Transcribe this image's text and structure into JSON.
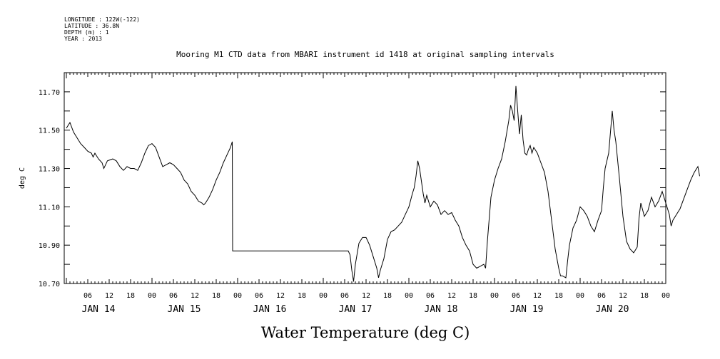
{
  "header": {
    "longitude": "LONGITUDE : 122W(-122)",
    "latitude": "LATITUDE : 36.8N",
    "depth": "DEPTH (m) : 1",
    "year": "YEAR : 2013"
  },
  "chart_data": {
    "type": "line",
    "title": "Mooring M1 CTD data from MBARI instrument id 1418 at original sampling intervals",
    "xlabel": "Water Temperature (deg C)",
    "ylabel": "deg C",
    "xlim_hours": [
      0,
      171
    ],
    "ylim": [
      10.7,
      11.8
    ],
    "y_ticks": [
      "10.70",
      "10.90",
      "11.10",
      "11.30",
      "11.50",
      "11.70"
    ],
    "hour_tick_labels": [
      "06",
      "12",
      "18",
      "00"
    ],
    "day_labels": [
      "JAN 14",
      "JAN 15",
      "JAN 16",
      "JAN 17",
      "JAN 18",
      "JAN 19",
      "JAN 20"
    ],
    "grid": false,
    "series": [
      {
        "points": [
          [
            0.0,
            11.51
          ],
          [
            1.0,
            11.54
          ],
          [
            2.0,
            11.49
          ],
          [
            3.0,
            11.46
          ],
          [
            4.0,
            11.43
          ],
          [
            5.0,
            11.41
          ],
          [
            6.0,
            11.39
          ],
          [
            7.0,
            11.38
          ],
          [
            7.5,
            11.36
          ],
          [
            8.0,
            11.38
          ],
          [
            9.0,
            11.35
          ],
          [
            10.0,
            11.33
          ],
          [
            10.5,
            11.3
          ],
          [
            11.0,
            11.32
          ],
          [
            11.5,
            11.34
          ],
          [
            13.0,
            11.35
          ],
          [
            14.0,
            11.34
          ],
          [
            15.0,
            11.31
          ],
          [
            16.0,
            11.29
          ],
          [
            17.0,
            11.31
          ],
          [
            18.0,
            11.3
          ],
          [
            19.0,
            11.3
          ],
          [
            20.0,
            11.29
          ],
          [
            21.0,
            11.33
          ],
          [
            22.0,
            11.38
          ],
          [
            23.0,
            11.42
          ],
          [
            24.0,
            11.43
          ],
          [
            25.0,
            11.41
          ],
          [
            26.0,
            11.36
          ],
          [
            27.0,
            11.31
          ],
          [
            28.0,
            11.32
          ],
          [
            29.0,
            11.33
          ],
          [
            30.0,
            11.32
          ],
          [
            31.0,
            11.3
          ],
          [
            32.0,
            11.28
          ],
          [
            33.0,
            11.24
          ],
          [
            34.0,
            11.22
          ],
          [
            35.0,
            11.18
          ],
          [
            36.0,
            11.16
          ],
          [
            37.0,
            11.13
          ],
          [
            38.0,
            11.12
          ],
          [
            38.5,
            11.11
          ],
          [
            39.0,
            11.12
          ],
          [
            40.0,
            11.15
          ],
          [
            41.0,
            11.19
          ],
          [
            42.0,
            11.24
          ],
          [
            43.0,
            11.28
          ],
          [
            44.0,
            11.33
          ],
          [
            45.0,
            11.37
          ],
          [
            46.0,
            11.41
          ],
          [
            46.5,
            11.44
          ],
          [
            46.6,
            10.87
          ],
          [
            58.0,
            10.87
          ],
          [
            70.0,
            10.87
          ],
          [
            79.0,
            10.87
          ],
          [
            79.5,
            10.85
          ],
          [
            80.0,
            10.77
          ],
          [
            80.5,
            10.71
          ],
          [
            81.0,
            10.8
          ],
          [
            82.0,
            10.91
          ],
          [
            83.0,
            10.94
          ],
          [
            84.0,
            10.94
          ],
          [
            85.0,
            10.9
          ],
          [
            86.0,
            10.84
          ],
          [
            87.0,
            10.78
          ],
          [
            87.5,
            10.73
          ],
          [
            88.0,
            10.77
          ],
          [
            89.0,
            10.83
          ],
          [
            90.0,
            10.93
          ],
          [
            91.0,
            10.97
          ],
          [
            92.0,
            10.98
          ],
          [
            93.0,
            11.0
          ],
          [
            94.0,
            11.02
          ],
          [
            95.0,
            11.06
          ],
          [
            96.0,
            11.1
          ],
          [
            97.0,
            11.17
          ],
          [
            97.5,
            11.2
          ],
          [
            98.0,
            11.26
          ],
          [
            98.5,
            11.34
          ],
          [
            99.0,
            11.3
          ],
          [
            100.0,
            11.17
          ],
          [
            100.5,
            11.12
          ],
          [
            101.0,
            11.16
          ],
          [
            102.0,
            11.1
          ],
          [
            103.0,
            11.13
          ],
          [
            104.0,
            11.11
          ],
          [
            105.0,
            11.06
          ],
          [
            106.0,
            11.08
          ],
          [
            107.0,
            11.06
          ],
          [
            108.0,
            11.07
          ],
          [
            109.0,
            11.03
          ],
          [
            110.0,
            11.0
          ],
          [
            111.0,
            10.94
          ],
          [
            112.0,
            10.9
          ],
          [
            113.0,
            10.87
          ],
          [
            114.0,
            10.8
          ],
          [
            115.0,
            10.78
          ],
          [
            116.0,
            10.79
          ],
          [
            117.0,
            10.8
          ],
          [
            117.5,
            10.78
          ],
          [
            118.0,
            10.92
          ],
          [
            119.0,
            11.15
          ],
          [
            120.0,
            11.24
          ],
          [
            121.0,
            11.3
          ],
          [
            122.0,
            11.35
          ],
          [
            123.0,
            11.44
          ],
          [
            124.0,
            11.55
          ],
          [
            124.5,
            11.63
          ],
          [
            125.0,
            11.6
          ],
          [
            125.5,
            11.55
          ],
          [
            126.0,
            11.73
          ],
          [
            126.5,
            11.6
          ],
          [
            127.0,
            11.48
          ],
          [
            127.5,
            11.58
          ],
          [
            128.0,
            11.45
          ],
          [
            128.5,
            11.38
          ],
          [
            129.0,
            11.37
          ],
          [
            129.5,
            11.4
          ],
          [
            130.0,
            11.42
          ],
          [
            130.5,
            11.38
          ],
          [
            131.0,
            11.41
          ],
          [
            132.0,
            11.38
          ],
          [
            133.0,
            11.33
          ],
          [
            134.0,
            11.28
          ],
          [
            135.0,
            11.18
          ],
          [
            136.0,
            11.03
          ],
          [
            137.0,
            10.88
          ],
          [
            138.0,
            10.78
          ],
          [
            138.5,
            10.74
          ],
          [
            139.0,
            10.74
          ],
          [
            140.0,
            10.73
          ],
          [
            140.5,
            10.82
          ],
          [
            141.0,
            10.9
          ],
          [
            142.0,
            10.99
          ],
          [
            143.0,
            11.03
          ],
          [
            144.0,
            11.1
          ],
          [
            145.0,
            11.08
          ],
          [
            146.0,
            11.05
          ],
          [
            147.0,
            11.0
          ],
          [
            148.0,
            10.97
          ],
          [
            149.0,
            11.03
          ],
          [
            150.0,
            11.08
          ],
          [
            150.5,
            11.2
          ],
          [
            151.0,
            11.3
          ],
          [
            152.0,
            11.38
          ],
          [
            153.0,
            11.6
          ],
          [
            153.5,
            11.5
          ],
          [
            154.0,
            11.44
          ],
          [
            155.0,
            11.25
          ],
          [
            156.0,
            11.05
          ],
          [
            157.0,
            10.92
          ],
          [
            158.0,
            10.88
          ],
          [
            159.0,
            10.86
          ],
          [
            160.0,
            10.89
          ],
          [
            160.5,
            11.04
          ],
          [
            161.0,
            11.12
          ],
          [
            162.0,
            11.05
          ],
          [
            163.0,
            11.08
          ],
          [
            164.0,
            11.15
          ],
          [
            165.0,
            11.1
          ],
          [
            166.0,
            11.13
          ],
          [
            167.0,
            11.18
          ],
          [
            168.0,
            11.12
          ],
          [
            169.0,
            11.06
          ],
          [
            169.5,
            11.0
          ],
          [
            170.0,
            11.03
          ],
          [
            171.0,
            11.06
          ],
          [
            172.0,
            11.09
          ],
          [
            173.0,
            11.14
          ],
          [
            174.0,
            11.19
          ],
          [
            175.0,
            11.24
          ],
          [
            176.0,
            11.28
          ],
          [
            177.0,
            11.31
          ],
          [
            177.5,
            11.26
          ]
        ]
      }
    ]
  }
}
